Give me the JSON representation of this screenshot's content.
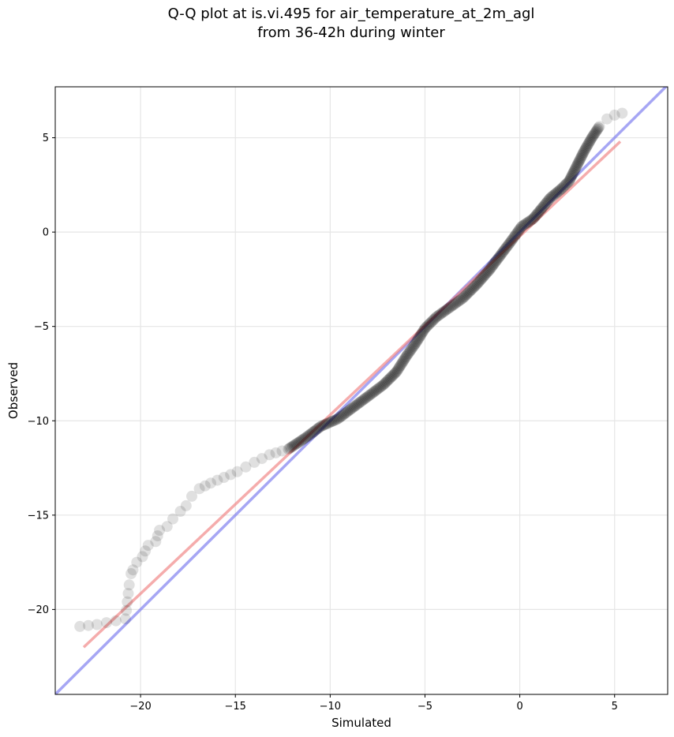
{
  "chart_data": {
    "type": "scatter",
    "title_line1": "Q-Q plot at is.vi.495 for air_temperature_at_2m_agl",
    "title_line2": "from 36-42h during winter",
    "xlabel": "Simulated",
    "ylabel": "Observed",
    "xlim": [
      -24.5,
      7.8
    ],
    "ylim": [
      -24.5,
      7.7
    ],
    "xticks": [
      -20,
      -15,
      -10,
      -5,
      0,
      5
    ],
    "yticks": [
      -20,
      -15,
      -10,
      -5,
      0,
      5
    ],
    "tick_labels": {
      "x": [
        "−20",
        "−15",
        "−10",
        "−5",
        "0",
        "5"
      ],
      "y": [
        "−20",
        "−15",
        "−10",
        "−5",
        "0",
        "5"
      ]
    },
    "grid": true,
    "reference_lines": [
      {
        "kind": "identity",
        "color": "#7777ee",
        "x": [
          -24.5,
          7.8
        ],
        "y": [
          -24.5,
          7.8
        ]
      },
      {
        "kind": "fit",
        "color": "#f08080",
        "x": [
          -23.0,
          5.3
        ],
        "y": [
          -22.0,
          4.8
        ]
      }
    ],
    "quantile_curve_xy": [
      [
        -23.2,
        -20.9
      ],
      [
        -22.3,
        -20.8
      ],
      [
        -21.8,
        -20.7
      ],
      [
        -20.8,
        -20.5
      ],
      [
        -20.6,
        -18.7
      ],
      [
        -20.5,
        -18.1
      ],
      [
        -20.4,
        -17.9
      ],
      [
        -20.2,
        -17.5
      ],
      [
        -19.9,
        -17.2
      ],
      [
        -19.6,
        -16.6
      ],
      [
        -19.2,
        -16.4
      ],
      [
        -19.0,
        -15.8
      ],
      [
        -18.6,
        -15.6
      ],
      [
        -18.3,
        -15.2
      ],
      [
        -17.9,
        -14.8
      ],
      [
        -17.6,
        -14.5
      ],
      [
        -17.3,
        -14.0
      ],
      [
        -16.9,
        -13.6
      ],
      [
        -16.3,
        -13.3
      ],
      [
        -15.6,
        -13.0
      ],
      [
        -14.9,
        -12.7
      ],
      [
        -14.0,
        -12.2
      ],
      [
        -13.2,
        -11.8
      ],
      [
        -12.2,
        -11.5
      ],
      [
        -11.3,
        -10.9
      ],
      [
        -10.5,
        -10.3
      ],
      [
        -9.6,
        -9.9
      ],
      [
        -8.8,
        -9.3
      ],
      [
        -8.0,
        -8.7
      ],
      [
        -7.2,
        -8.1
      ],
      [
        -6.5,
        -7.4
      ],
      [
        -6.0,
        -6.6
      ],
      [
        -5.5,
        -5.9
      ],
      [
        -5.0,
        -5.1
      ],
      [
        -4.4,
        -4.5
      ],
      [
        -3.7,
        -4.0
      ],
      [
        -3.0,
        -3.5
      ],
      [
        -2.3,
        -2.8
      ],
      [
        -1.6,
        -2.0
      ],
      [
        -1.0,
        -1.2
      ],
      [
        -0.4,
        -0.4
      ],
      [
        0.1,
        0.3
      ],
      [
        0.7,
        0.7
      ],
      [
        1.2,
        1.3
      ],
      [
        1.6,
        1.8
      ],
      [
        2.2,
        2.3
      ],
      [
        2.6,
        2.7
      ],
      [
        3.0,
        3.5
      ],
      [
        3.4,
        4.3
      ],
      [
        3.8,
        5.0
      ],
      [
        4.2,
        5.6
      ],
      [
        4.6,
        6.0
      ],
      [
        5.0,
        6.2
      ],
      [
        5.4,
        6.3
      ]
    ],
    "point_color": "#000000"
  }
}
